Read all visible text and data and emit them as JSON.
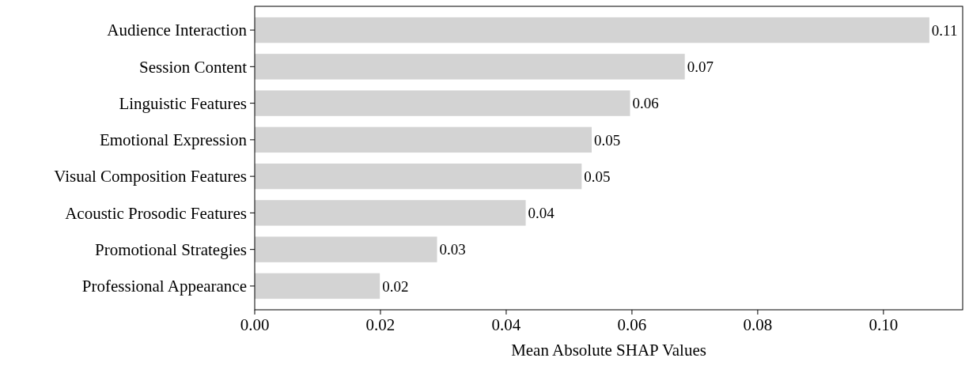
{
  "chart_data": {
    "type": "bar",
    "orientation": "horizontal",
    "xlabel": "Mean Absolute SHAP Values",
    "categories": [
      "Audience Interaction",
      "Session Content",
      "Linguistic Features",
      "Emotional Expression",
      "Visual Composition Features",
      "Acoustic Prosodic Features",
      "Promotional Strategies",
      "Professional Appearance"
    ],
    "values": [
      0.1073,
      0.0684,
      0.0597,
      0.0536,
      0.052,
      0.0431,
      0.029,
      0.0199
    ],
    "value_labels": [
      "0.11",
      "0.07",
      "0.06",
      "0.05",
      "0.05",
      "0.04",
      "0.03",
      "0.02"
    ],
    "color": "#d3d3d3",
    "xlim": [
      0,
      0.1126
    ],
    "xticks": [
      {
        "value": 0,
        "label": "0.00"
      },
      {
        "value": 0.02,
        "label": "0.02"
      },
      {
        "value": 0.04,
        "label": "0.04"
      },
      {
        "value": 0.06,
        "label": "0.06"
      },
      {
        "value": 0.08,
        "label": "0.08"
      },
      {
        "value": 0.1,
        "label": "0.10"
      }
    ],
    "grid": false
  }
}
